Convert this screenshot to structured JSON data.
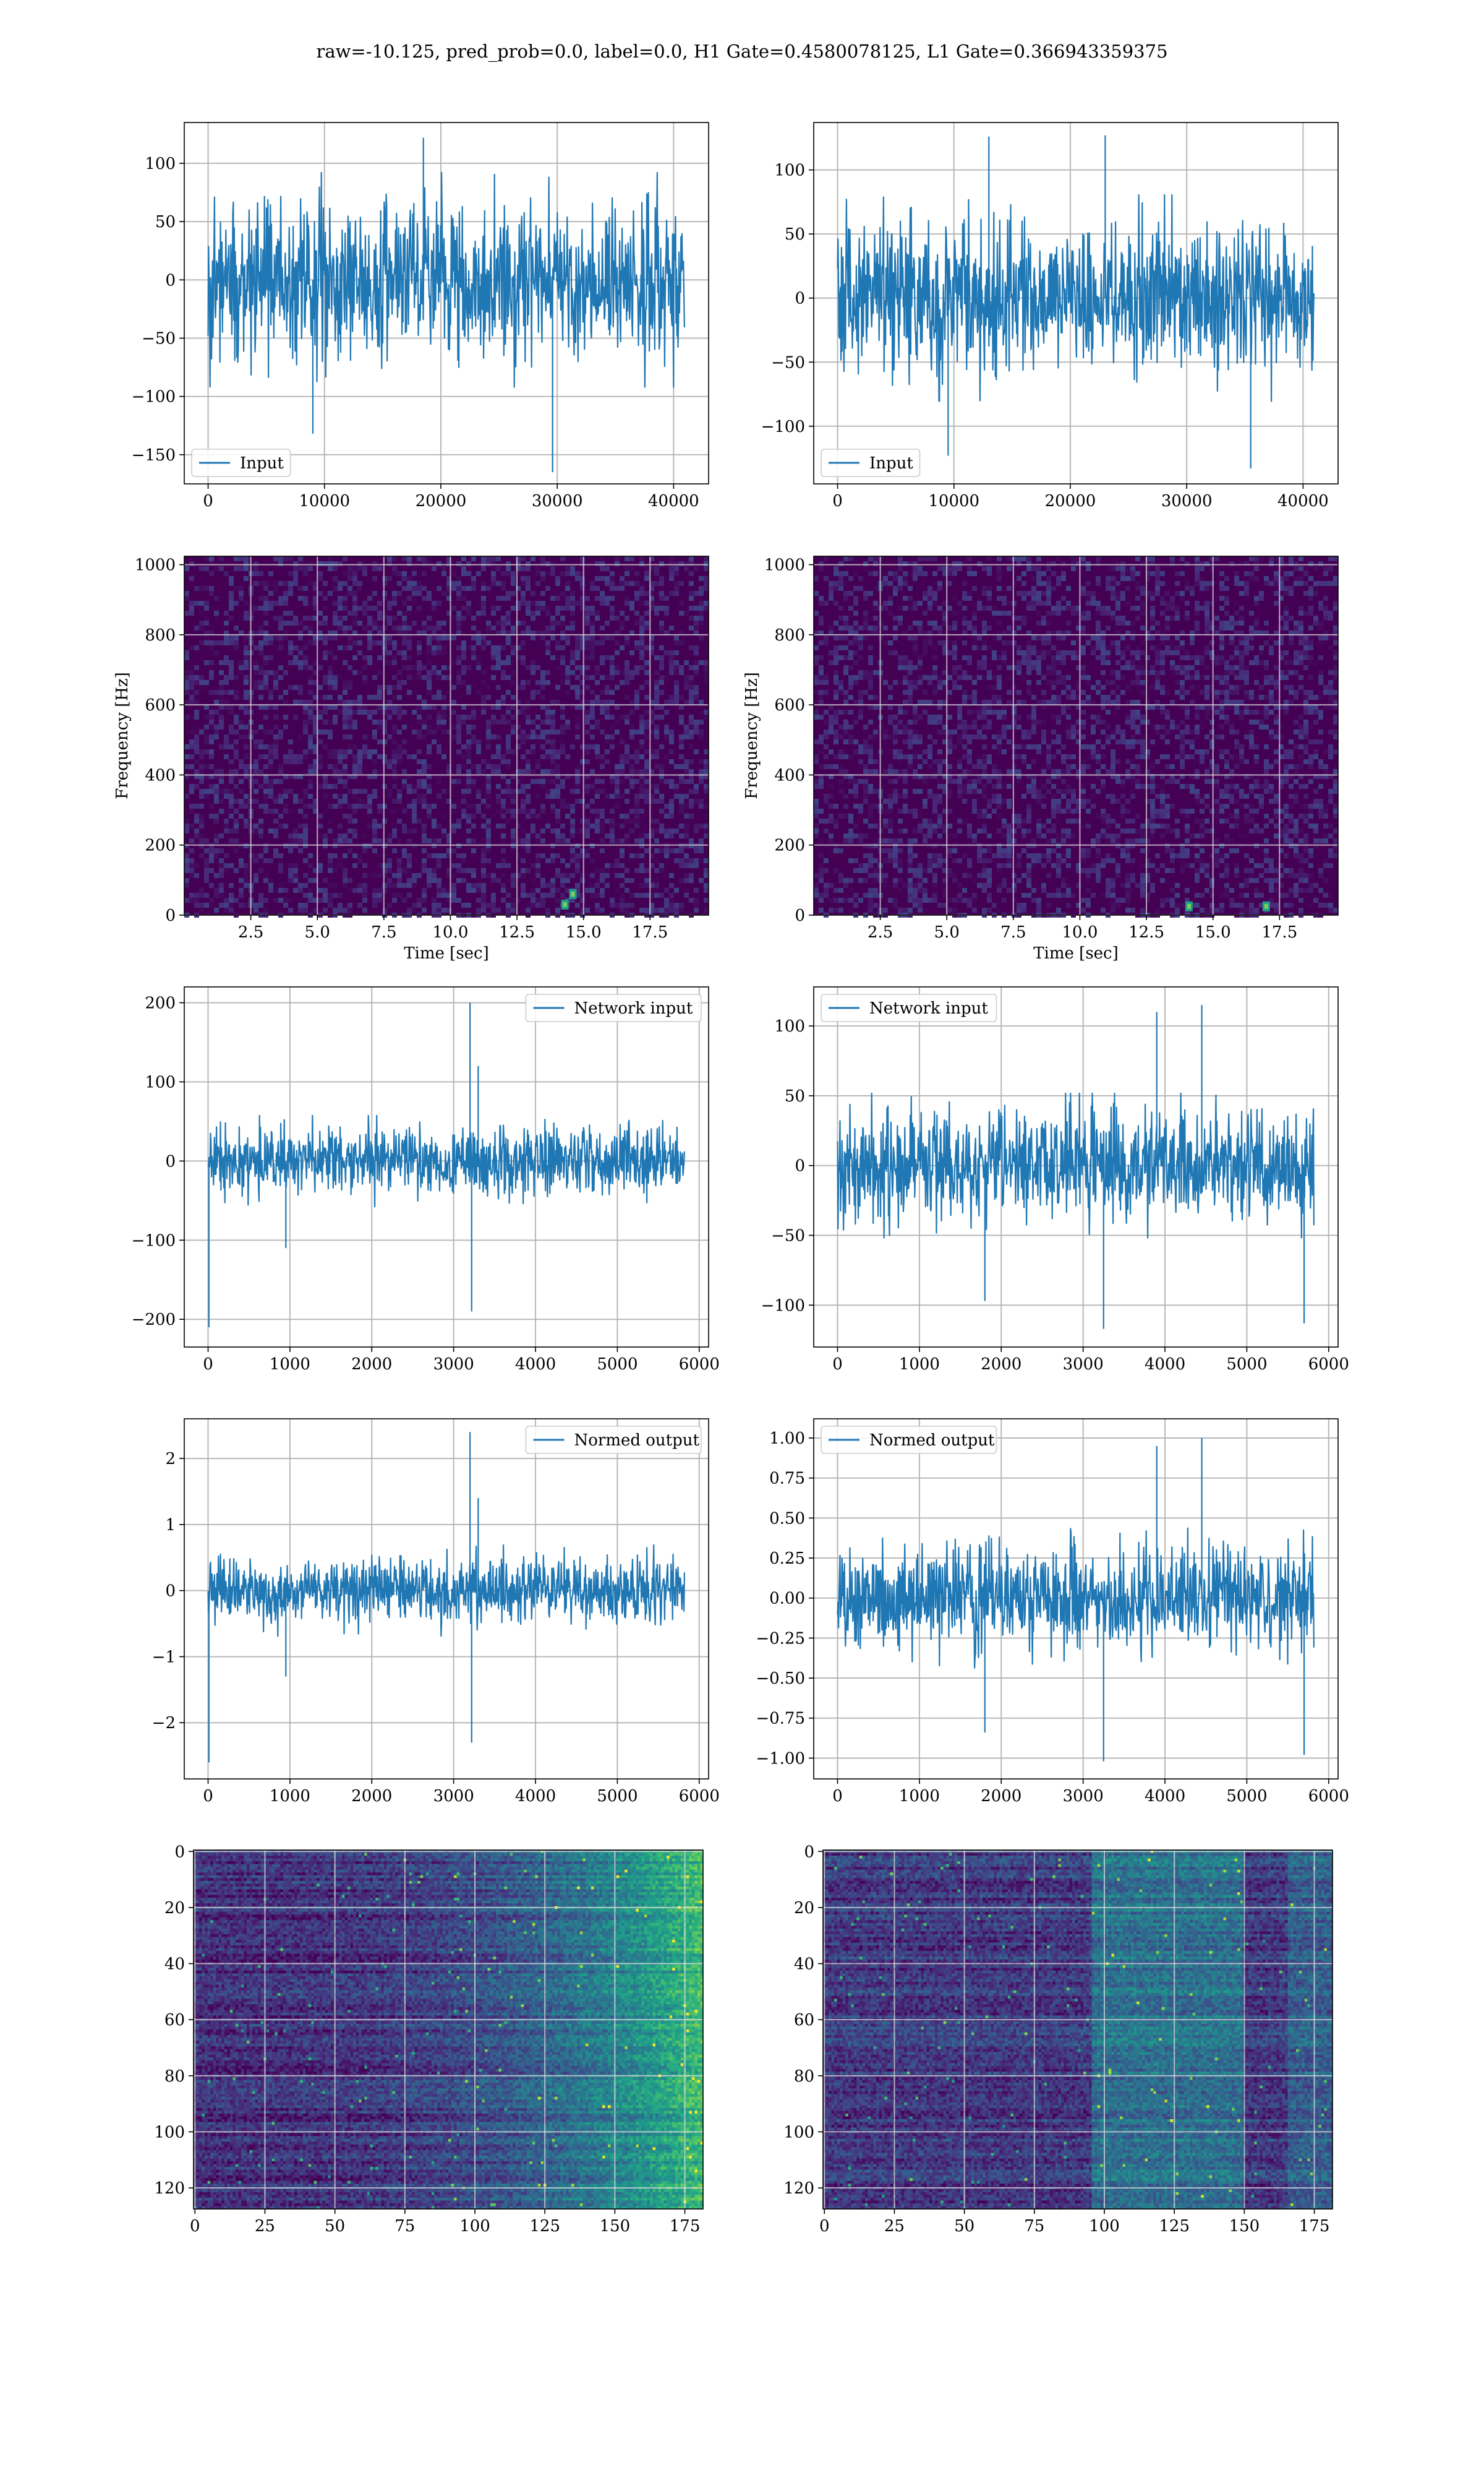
{
  "figure": {
    "title": "raw=-10.125, pred_prob=0.0, label=0.0, H1 Gate=0.4580078125, L1 Gate=0.366943359375"
  },
  "colors": {
    "series": "#1f77b4",
    "grid": "#b0b0b0",
    "axes": "#000000",
    "viridis": [
      "#440154",
      "#482878",
      "#3e4989",
      "#31688e",
      "#26828e",
      "#1f9e89",
      "#35b779",
      "#6ece58",
      "#b5de2b",
      "#fde725"
    ]
  },
  "chart_data": [
    {
      "id": "input-h1",
      "type": "line",
      "series": [
        {
          "name": "Input",
          "n": 40960,
          "envelope": {
            "typical": [
              -80,
              80
            ],
            "extremes": [
              [
                18500,
                122
              ],
              [
                29600,
                -165
              ],
              [
                9000,
                -132
              ]
            ]
          }
        }
      ],
      "xlim": [
        -2048,
        43008
      ],
      "ylim": [
        -175,
        135
      ],
      "xticks": [
        0,
        10000,
        20000,
        30000,
        40000
      ],
      "xticklabels": [
        "0",
        "10000",
        "20000",
        "30000",
        "40000"
      ],
      "yticks": [
        -150,
        -100,
        -50,
        0,
        50,
        100
      ],
      "yticklabels": [
        "−150",
        "−100",
        "−50",
        "0",
        "50",
        "100"
      ],
      "legend": "lower-left",
      "grid": true,
      "xlabel": "",
      "ylabel": ""
    },
    {
      "id": "input-l1",
      "type": "line",
      "series": [
        {
          "name": "Input",
          "n": 40960,
          "envelope": {
            "typical": [
              -70,
              70
            ],
            "extremes": [
              [
                13000,
                126
              ],
              [
                23000,
                127
              ],
              [
                35500,
                -133
              ],
              [
                9500,
                -123
              ]
            ]
          }
        }
      ],
      "xlim": [
        -2048,
        43008
      ],
      "ylim": [
        -145,
        137
      ],
      "xticks": [
        0,
        10000,
        20000,
        30000,
        40000
      ],
      "xticklabels": [
        "0",
        "10000",
        "20000",
        "30000",
        "40000"
      ],
      "yticks": [
        -100,
        -50,
        0,
        50,
        100
      ],
      "yticklabels": [
        "−100",
        "−50",
        "0",
        "50",
        "100"
      ],
      "legend": "lower-left",
      "grid": true,
      "xlabel": "",
      "ylabel": ""
    },
    {
      "id": "spec-h1",
      "type": "heatmap",
      "xlim": [
        0,
        19.7
      ],
      "ylim": [
        0,
        1024
      ],
      "xticks": [
        2.5,
        5.0,
        7.5,
        10.0,
        12.5,
        15.0,
        17.5
      ],
      "xticklabels": [
        "2.5",
        "5.0",
        "7.5",
        "10.0",
        "12.5",
        "15.0",
        "17.5"
      ],
      "yticks": [
        0,
        200,
        400,
        600,
        800,
        1000
      ],
      "yticklabels": [
        "0",
        "200",
        "400",
        "600",
        "800",
        "1000"
      ],
      "xlabel": "Time [sec]",
      "ylabel": "Frequency [Hz]",
      "grid": true,
      "hotspots": [
        [
          14.3,
          30
        ],
        [
          14.6,
          60
        ]
      ]
    },
    {
      "id": "spec-l1",
      "type": "heatmap",
      "xlim": [
        0,
        19.7
      ],
      "ylim": [
        0,
        1024
      ],
      "xticks": [
        2.5,
        5.0,
        7.5,
        10.0,
        12.5,
        15.0,
        17.5
      ],
      "xticklabels": [
        "2.5",
        "5.0",
        "7.5",
        "10.0",
        "12.5",
        "15.0",
        "17.5"
      ],
      "yticks": [
        0,
        200,
        400,
        600,
        800,
        1000
      ],
      "yticklabels": [
        "0",
        "200",
        "400",
        "600",
        "800",
        "1000"
      ],
      "xlabel": "Time [sec]",
      "ylabel": "Frequency [Hz]",
      "grid": true,
      "hotspots": [
        [
          14.1,
          25
        ],
        [
          17.0,
          25
        ]
      ]
    },
    {
      "id": "net-h1",
      "type": "line",
      "series": [
        {
          "name": "Network input",
          "n": 5824,
          "envelope": {
            "typical": [
              -50,
              50
            ],
            "extremes": [
              [
                3200,
                200
              ],
              [
                3220,
                -190
              ],
              [
                3300,
                120
              ],
              [
                10,
                -210
              ],
              [
                950,
                -110
              ]
            ]
          }
        }
      ],
      "xlim": [
        -291,
        6115
      ],
      "ylim": [
        -235,
        220
      ],
      "xticks": [
        0,
        1000,
        2000,
        3000,
        4000,
        5000,
        6000
      ],
      "xticklabels": [
        "0",
        "1000",
        "2000",
        "3000",
        "4000",
        "5000",
        "6000"
      ],
      "yticks": [
        -200,
        -100,
        0,
        100,
        200
      ],
      "yticklabels": [
        "−200",
        "−100",
        "0",
        "100",
        "200"
      ],
      "legend": "upper-right",
      "grid": true,
      "xlabel": "",
      "ylabel": ""
    },
    {
      "id": "net-l1",
      "type": "line",
      "series": [
        {
          "name": "Network input",
          "n": 5824,
          "envelope": {
            "typical": [
              -45,
              45
            ],
            "extremes": [
              [
                3900,
                110
              ],
              [
                4450,
                115
              ],
              [
                3250,
                -117
              ],
              [
                1800,
                -97
              ],
              [
                5700,
                -113
              ]
            ]
          }
        }
      ],
      "xlim": [
        -291,
        6115
      ],
      "ylim": [
        -130,
        128
      ],
      "xticks": [
        0,
        1000,
        2000,
        3000,
        4000,
        5000,
        6000
      ],
      "xticklabels": [
        "0",
        "1000",
        "2000",
        "3000",
        "4000",
        "5000",
        "6000"
      ],
      "yticks": [
        -100,
        -50,
        0,
        50,
        100
      ],
      "yticklabels": [
        "−100",
        "−50",
        "0",
        "50",
        "100"
      ],
      "legend": "upper-left",
      "grid": true,
      "xlabel": "",
      "ylabel": ""
    },
    {
      "id": "norm-h1",
      "type": "line",
      "series": [
        {
          "name": "Normed output",
          "n": 5824,
          "envelope": {
            "typical": [
              -0.6,
              0.6
            ],
            "extremes": [
              [
                3200,
                2.4
              ],
              [
                3220,
                -2.3
              ],
              [
                3300,
                1.4
              ],
              [
                10,
                -2.6
              ],
              [
                950,
                -1.3
              ]
            ]
          }
        }
      ],
      "xlim": [
        -291,
        6115
      ],
      "ylim": [
        -2.85,
        2.6
      ],
      "xticks": [
        0,
        1000,
        2000,
        3000,
        4000,
        5000,
        6000
      ],
      "xticklabels": [
        "0",
        "1000",
        "2000",
        "3000",
        "4000",
        "5000",
        "6000"
      ],
      "yticks": [
        -2,
        -1,
        0,
        1,
        2
      ],
      "yticklabels": [
        "−2",
        "−1",
        "0",
        "1",
        "2"
      ],
      "legend": "upper-right",
      "grid": true,
      "xlabel": "",
      "ylabel": ""
    },
    {
      "id": "norm-l1",
      "type": "line",
      "series": [
        {
          "name": "Normed output",
          "n": 5824,
          "envelope": {
            "typical": [
              -0.38,
              0.38
            ],
            "extremes": [
              [
                3900,
                0.95
              ],
              [
                4450,
                1.0
              ],
              [
                3250,
                -1.02
              ],
              [
                1800,
                -0.84
              ],
              [
                5700,
                -0.98
              ]
            ]
          }
        }
      ],
      "xlim": [
        -291,
        6115
      ],
      "ylim": [
        -1.13,
        1.12
      ],
      "xticks": [
        0,
        1000,
        2000,
        3000,
        4000,
        5000,
        6000
      ],
      "xticklabels": [
        "0",
        "1000",
        "2000",
        "3000",
        "4000",
        "5000",
        "6000"
      ],
      "yticks": [
        -1.0,
        -0.75,
        -0.5,
        -0.25,
        0.0,
        0.25,
        0.5,
        0.75,
        1.0
      ],
      "yticklabels": [
        "−1.00",
        "−0.75",
        "−0.50",
        "−0.25",
        "0.00",
        "0.25",
        "0.50",
        "0.75",
        "1.00"
      ],
      "legend": "upper-left",
      "grid": true,
      "xlabel": "",
      "ylabel": ""
    },
    {
      "id": "feat-h1",
      "type": "heatmap",
      "xlim": [
        -0.5,
        181.5
      ],
      "ylim": [
        127.5,
        -0.5
      ],
      "xticks": [
        0,
        25,
        50,
        75,
        100,
        125,
        150,
        175
      ],
      "xticklabels": [
        "0",
        "25",
        "50",
        "75",
        "100",
        "125",
        "150",
        "175"
      ],
      "yticks": [
        0,
        20,
        40,
        60,
        80,
        100,
        120
      ],
      "yticklabels": [
        "0",
        "20",
        "40",
        "60",
        "80",
        "100",
        "120"
      ],
      "grid": true,
      "xlabel": "",
      "ylabel": ""
    },
    {
      "id": "feat-l1",
      "type": "heatmap",
      "xlim": [
        -0.5,
        181.5
      ],
      "ylim": [
        127.5,
        -0.5
      ],
      "xticks": [
        0,
        25,
        50,
        75,
        100,
        125,
        150,
        175
      ],
      "xticklabels": [
        "0",
        "25",
        "50",
        "75",
        "100",
        "125",
        "150",
        "175"
      ],
      "yticks": [
        0,
        20,
        40,
        60,
        80,
        100,
        120
      ],
      "yticklabels": [
        "0",
        "20",
        "40",
        "60",
        "80",
        "100",
        "120"
      ],
      "grid": true,
      "xlabel": "",
      "ylabel": ""
    }
  ]
}
